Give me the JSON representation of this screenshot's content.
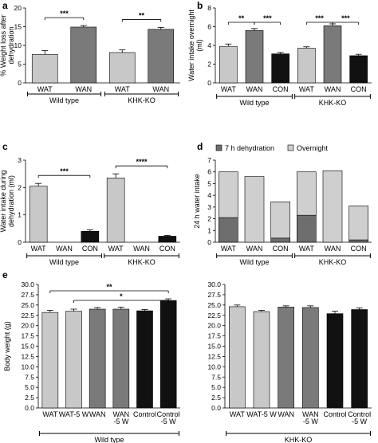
{
  "chart_data": [
    {
      "id": "a",
      "panel_label": "a",
      "type": "bar",
      "ylabel": "% Weight loss after\ndehydration",
      "ylim": [
        0,
        20
      ],
      "yticks": [
        0,
        5,
        10,
        15,
        20
      ],
      "categories": [
        "WAT",
        "WAN",
        "WAT",
        "WAN"
      ],
      "values": [
        7.6,
        14.9,
        8.1,
        14.3
      ],
      "errors": [
        1.0,
        0.4,
        0.7,
        0.5
      ],
      "colors": [
        "#c8c8c8",
        "#7a7a7a",
        "#c8c8c8",
        "#7a7a7a"
      ],
      "groups": [
        {
          "label": "Wild type",
          "start": 0,
          "end": 1
        },
        {
          "label": "KHK-KO",
          "start": 2,
          "end": 3
        }
      ],
      "significance": [
        {
          "from": 0,
          "to": 1,
          "label": "***"
        },
        {
          "from": 2,
          "to": 3,
          "label": "**"
        }
      ]
    },
    {
      "id": "b",
      "panel_label": "b",
      "type": "bar",
      "ylabel": "Water intake overnight\n(ml)",
      "ylim": [
        0,
        8
      ],
      "yticks": [
        0,
        2,
        4,
        6,
        8
      ],
      "categories": [
        "WAT",
        "WAN",
        "CON",
        "WAT",
        "WAN",
        "CON"
      ],
      "values": [
        3.9,
        5.6,
        3.1,
        3.7,
        6.1,
        2.9
      ],
      "errors": [
        0.25,
        0.2,
        0.15,
        0.15,
        0.2,
        0.15
      ],
      "colors": [
        "#c8c8c8",
        "#7a7a7a",
        "#111111",
        "#c8c8c8",
        "#7a7a7a",
        "#111111"
      ],
      "groups": [
        {
          "label": "Wild type",
          "start": 0,
          "end": 2
        },
        {
          "label": "KHK-KO",
          "start": 3,
          "end": 5
        }
      ],
      "significance": [
        {
          "from": 0,
          "to": 1,
          "label": "**"
        },
        {
          "from": 1,
          "to": 2,
          "label": "***"
        },
        {
          "from": 3,
          "to": 4,
          "label": "***"
        },
        {
          "from": 4,
          "to": 5,
          "label": "***"
        }
      ]
    },
    {
      "id": "c",
      "panel_label": "c",
      "type": "bar",
      "ylabel": "Water intake during\ndehydration (ml)",
      "ylim": [
        0,
        3
      ],
      "yticks": [
        0,
        1,
        2,
        3
      ],
      "categories": [
        "WAT",
        "WAN",
        "CON",
        "WAT",
        "WAN",
        "CON"
      ],
      "values": [
        2.05,
        0,
        0.4,
        2.35,
        0,
        0.22
      ],
      "errors": [
        0.1,
        0,
        0.05,
        0.15,
        0,
        0.03
      ],
      "colors": [
        "#c8c8c8",
        "#7a7a7a",
        "#111111",
        "#c8c8c8",
        "#7a7a7a",
        "#111111"
      ],
      "groups": [
        {
          "label": "Wild type",
          "start": 0,
          "end": 2
        },
        {
          "label": "KHK-KO",
          "start": 3,
          "end": 5
        }
      ],
      "significance": [
        {
          "from": 0,
          "to": 2,
          "label": "***"
        },
        {
          "from": 3,
          "to": 5,
          "label": "****"
        }
      ]
    },
    {
      "id": "d",
      "panel_label": "d",
      "type": "bar",
      "ylabel": "24 h water intake",
      "ylim": [
        0,
        7
      ],
      "yticks": [
        0,
        1,
        2,
        3,
        4,
        5,
        6,
        7
      ],
      "categories": [
        "WAT",
        "WAN",
        "CON",
        "WAT",
        "WAN",
        "CON"
      ],
      "series": [
        {
          "name": "7 h dehydration",
          "color": "#6e6e6e",
          "values": [
            2.1,
            0,
            0.35,
            2.3,
            0,
            0.2
          ]
        },
        {
          "name": "Overnight",
          "color": "#cfcfcf",
          "values": [
            3.9,
            5.6,
            3.1,
            3.7,
            6.1,
            2.9
          ]
        }
      ],
      "groups": [
        {
          "label": "Wild type",
          "start": 0,
          "end": 2
        },
        {
          "label": "KHK-KO",
          "start": 3,
          "end": 5
        }
      ]
    },
    {
      "id": "e1",
      "panel_label": "e",
      "type": "bar",
      "ylabel": "Body weight (g)",
      "ylim": [
        0,
        30
      ],
      "yticks": [
        0,
        2.5,
        5,
        7.5,
        10,
        12.5,
        15,
        17.5,
        20,
        22.5,
        25,
        27.5,
        30
      ],
      "categories": [
        "WAT",
        "WAT-5 W",
        "WAN",
        "WAN\n-5 W",
        "Control",
        "Control\n-5 W"
      ],
      "values": [
        23.2,
        23.5,
        24.0,
        24.0,
        23.6,
        26.1
      ],
      "errors": [
        0.5,
        0.5,
        0.4,
        0.5,
        0.3,
        0.4
      ],
      "colors": [
        "#c8c8c8",
        "#c8c8c8",
        "#7a7a7a",
        "#7a7a7a",
        "#111111",
        "#111111"
      ],
      "groups": [
        {
          "label": "Wild type",
          "start": 0,
          "end": 5
        }
      ],
      "significance": [
        {
          "from": 0,
          "to": 5,
          "label": "**"
        },
        {
          "from": 1,
          "to": 5,
          "label": "*"
        }
      ]
    },
    {
      "id": "e2",
      "panel_label": "",
      "type": "bar",
      "ylabel": "",
      "ylim": [
        0,
        30
      ],
      "yticks": [
        0,
        2.5,
        5,
        7.5,
        10,
        12.5,
        15,
        17.5,
        20,
        22.5,
        25,
        27.5,
        30
      ],
      "categories": [
        "WAT",
        "WAT-5 W",
        "WAN",
        "WAN\n-5 W",
        "Control",
        "Control\n-5 W"
      ],
      "values": [
        24.6,
        23.4,
        24.5,
        24.4,
        22.9,
        23.9
      ],
      "errors": [
        0.4,
        0.3,
        0.3,
        0.4,
        0.6,
        0.4
      ],
      "colors": [
        "#c8c8c8",
        "#c8c8c8",
        "#7a7a7a",
        "#7a7a7a",
        "#111111",
        "#111111"
      ],
      "groups": [
        {
          "label": "KHK-KO",
          "start": 0,
          "end": 5
        }
      ]
    }
  ]
}
